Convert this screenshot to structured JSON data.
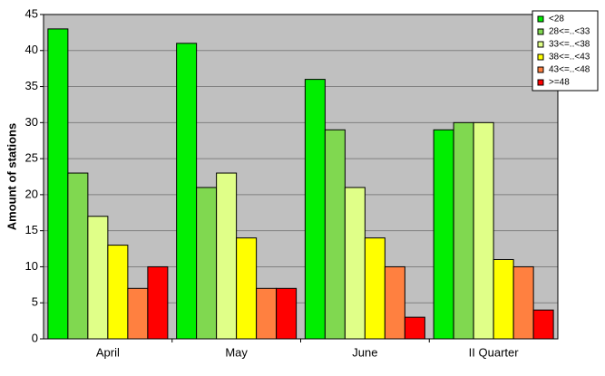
{
  "chart_data": {
    "type": "bar",
    "ylabel": "Amount of stations",
    "categories": [
      "April",
      "May",
      "June",
      "II Quarter"
    ],
    "series": [
      {
        "name": "<28",
        "color": "#00ee00",
        "values": [
          43,
          41,
          36,
          29
        ]
      },
      {
        "name": "28<=..<33",
        "color": "#80d850",
        "values": [
          23,
          21,
          29,
          30
        ]
      },
      {
        "name": "33<=..<38",
        "color": "#e0ff88",
        "values": [
          17,
          23,
          21,
          30
        ]
      },
      {
        "name": "38<=..<43",
        "color": "#ffff00",
        "values": [
          13,
          14,
          14,
          11
        ]
      },
      {
        "name": "43<=..<48",
        "color": "#ff8040",
        "values": [
          7,
          7,
          10,
          10
        ]
      },
      {
        "name": ">=48",
        "color": "#ff0000",
        "values": [
          10,
          7,
          3,
          4
        ]
      }
    ],
    "ylim": [
      0,
      45
    ],
    "yticks": [
      0,
      5,
      10,
      15,
      20,
      25,
      30,
      35,
      40,
      45
    ],
    "grid": true,
    "legend": "top-right"
  }
}
